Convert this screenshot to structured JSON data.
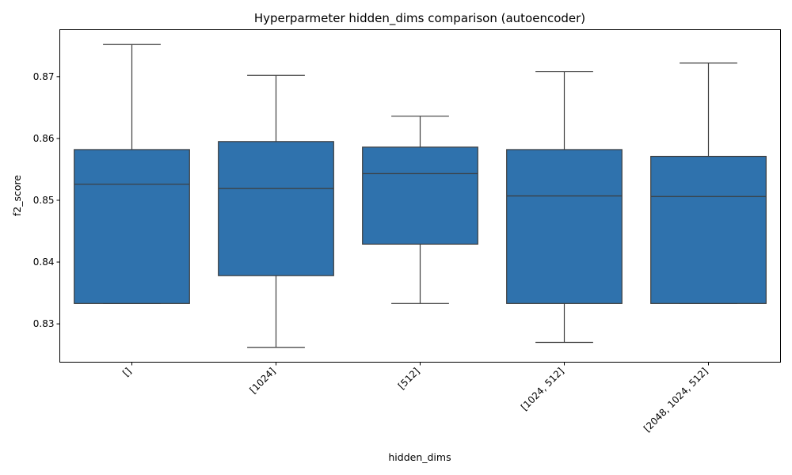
{
  "chart_data": {
    "type": "box",
    "title": "Hyperparmeter hidden_dims comparison (autoencoder)",
    "xlabel": "hidden_dims",
    "ylabel": "f2_score",
    "ylim": [
      0.8238,
      0.8776
    ],
    "yticks": [
      0.83,
      0.84,
      0.85,
      0.86,
      0.87
    ],
    "ytick_labels": [
      "0.83",
      "0.84",
      "0.85",
      "0.86",
      "0.87"
    ],
    "categories": [
      "[]",
      "[1024]",
      "[512]",
      "[1024, 512]",
      "[2048, 1024, 512]"
    ],
    "boxes": [
      {
        "whislo": 0.8333,
        "q1": 0.8333,
        "med": 0.8526,
        "q3": 0.8582,
        "whishi": 0.8752
      },
      {
        "whislo": 0.8262,
        "q1": 0.8378,
        "med": 0.8519,
        "q3": 0.8595,
        "whishi": 0.8702
      },
      {
        "whislo": 0.8333,
        "q1": 0.8429,
        "med": 0.8543,
        "q3": 0.8586,
        "whishi": 0.8636
      },
      {
        "whislo": 0.827,
        "q1": 0.8333,
        "med": 0.8507,
        "q3": 0.8582,
        "whishi": 0.8708
      },
      {
        "whislo": 0.8333,
        "q1": 0.8333,
        "med": 0.8506,
        "q3": 0.8571,
        "whishi": 0.8722
      }
    ],
    "box_color": "#2f72ad",
    "line_color": "#3d3d3d",
    "grid": false,
    "xtick_rotation": 45
  }
}
